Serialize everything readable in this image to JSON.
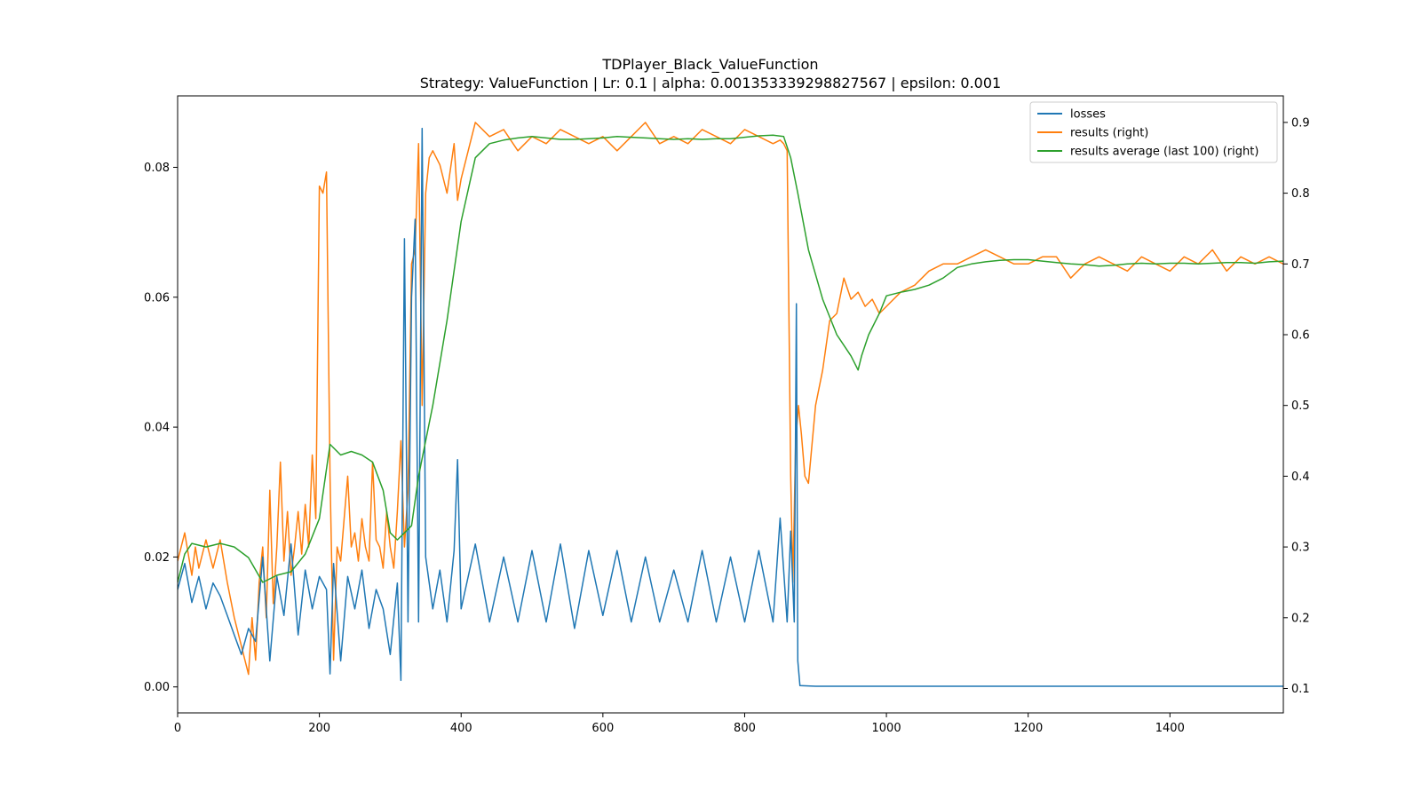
{
  "chart_data": {
    "type": "line",
    "title": "TDPlayer_Black_ValueFunction",
    "subtitle": "Strategy: ValueFunction | Lr: 0.1 | alpha: 0.001353339298827567 | epsilon: 0.001",
    "xlim": [
      0,
      1560
    ],
    "ylim_left": [
      -0.004,
      0.091
    ],
    "ylim_right": [
      0.0655,
      0.9375
    ],
    "xticks": [
      0,
      200,
      400,
      600,
      800,
      1000,
      1200,
      1400
    ],
    "yticks_left": [
      0.0,
      0.02,
      0.04,
      0.06,
      0.08
    ],
    "yticks_left_labels": [
      "0.00",
      "0.02",
      "0.04",
      "0.06",
      "0.08"
    ],
    "yticks_right": [
      0.1,
      0.2,
      0.3,
      0.4,
      0.5,
      0.6,
      0.7,
      0.8,
      0.9
    ],
    "yticks_right_labels": [
      "0.1",
      "0.2",
      "0.3",
      "0.4",
      "0.5",
      "0.6",
      "0.7",
      "0.8",
      "0.9"
    ],
    "legend_position": "top-right",
    "colors": {
      "losses": "#1f77b4",
      "results": "#ff7f0e",
      "average": "#2ca02c"
    },
    "series": [
      {
        "name": "losses",
        "axis": "left",
        "x": [
          0,
          10,
          20,
          30,
          40,
          50,
          60,
          70,
          80,
          90,
          100,
          110,
          120,
          130,
          140,
          150,
          160,
          170,
          180,
          190,
          200,
          210,
          215,
          220,
          230,
          240,
          250,
          260,
          270,
          280,
          290,
          300,
          310,
          315,
          320,
          325,
          330,
          335,
          340,
          345,
          350,
          360,
          370,
          380,
          390,
          395,
          400,
          420,
          440,
          460,
          480,
          500,
          520,
          540,
          560,
          580,
          600,
          620,
          640,
          660,
          680,
          700,
          720,
          740,
          760,
          780,
          800,
          820,
          840,
          850,
          860,
          865,
          870,
          873,
          875,
          878,
          900,
          1000,
          1200,
          1400,
          1560
        ],
        "values": [
          0.015,
          0.019,
          0.013,
          0.017,
          0.012,
          0.016,
          0.014,
          0.011,
          0.008,
          0.005,
          0.009,
          0.007,
          0.02,
          0.004,
          0.017,
          0.011,
          0.022,
          0.008,
          0.018,
          0.012,
          0.017,
          0.015,
          0.002,
          0.019,
          0.004,
          0.017,
          0.012,
          0.018,
          0.009,
          0.015,
          0.012,
          0.005,
          0.016,
          0.001,
          0.069,
          0.01,
          0.06,
          0.072,
          0.01,
          0.086,
          0.02,
          0.012,
          0.018,
          0.01,
          0.021,
          0.035,
          0.012,
          0.022,
          0.01,
          0.02,
          0.01,
          0.021,
          0.01,
          0.022,
          0.009,
          0.021,
          0.011,
          0.021,
          0.01,
          0.02,
          0.01,
          0.018,
          0.01,
          0.021,
          0.01,
          0.02,
          0.01,
          0.021,
          0.01,
          0.026,
          0.01,
          0.024,
          0.01,
          0.059,
          0.004,
          0.0002,
          0.0001,
          0.0001,
          0.0001,
          0.0001,
          0.0001
        ]
      },
      {
        "name": "results (right)",
        "axis": "right",
        "x": [
          0,
          10,
          20,
          25,
          30,
          40,
          50,
          60,
          70,
          80,
          90,
          100,
          105,
          110,
          115,
          120,
          125,
          130,
          135,
          140,
          145,
          150,
          155,
          160,
          165,
          170,
          175,
          180,
          185,
          190,
          195,
          200,
          205,
          210,
          215,
          220,
          225,
          230,
          235,
          240,
          245,
          250,
          255,
          260,
          265,
          270,
          275,
          280,
          285,
          290,
          295,
          300,
          305,
          310,
          315,
          320,
          325,
          330,
          335,
          340,
          345,
          350,
          355,
          360,
          370,
          380,
          390,
          395,
          400,
          420,
          440,
          460,
          480,
          500,
          520,
          540,
          560,
          580,
          600,
          620,
          640,
          660,
          680,
          700,
          720,
          740,
          760,
          780,
          800,
          820,
          840,
          850,
          855,
          860,
          865,
          868,
          872,
          876,
          880,
          885,
          890,
          900,
          910,
          920,
          930,
          940,
          950,
          960,
          970,
          980,
          990,
          1000,
          1020,
          1040,
          1060,
          1080,
          1100,
          1120,
          1140,
          1160,
          1180,
          1200,
          1220,
          1240,
          1260,
          1280,
          1300,
          1320,
          1340,
          1360,
          1380,
          1400,
          1420,
          1440,
          1460,
          1480,
          1500,
          1520,
          1540,
          1560
        ],
        "values": [
          0.28,
          0.32,
          0.26,
          0.3,
          0.27,
          0.31,
          0.27,
          0.31,
          0.25,
          0.2,
          0.16,
          0.12,
          0.2,
          0.14,
          0.25,
          0.3,
          0.2,
          0.38,
          0.22,
          0.3,
          0.42,
          0.28,
          0.35,
          0.26,
          0.3,
          0.35,
          0.29,
          0.36,
          0.3,
          0.43,
          0.34,
          0.81,
          0.8,
          0.83,
          0.4,
          0.14,
          0.3,
          0.28,
          0.34,
          0.4,
          0.3,
          0.32,
          0.28,
          0.34,
          0.3,
          0.28,
          0.42,
          0.31,
          0.3,
          0.27,
          0.35,
          0.3,
          0.27,
          0.35,
          0.45,
          0.3,
          0.38,
          0.7,
          0.72,
          0.87,
          0.5,
          0.8,
          0.85,
          0.86,
          0.84,
          0.8,
          0.87,
          0.79,
          0.82,
          0.9,
          0.88,
          0.89,
          0.86,
          0.88,
          0.87,
          0.89,
          0.88,
          0.87,
          0.88,
          0.86,
          0.88,
          0.9,
          0.87,
          0.88,
          0.87,
          0.89,
          0.88,
          0.87,
          0.89,
          0.88,
          0.87,
          0.875,
          0.87,
          0.86,
          0.4,
          0.25,
          0.45,
          0.5,
          0.46,
          0.4,
          0.39,
          0.5,
          0.55,
          0.62,
          0.63,
          0.68,
          0.65,
          0.66,
          0.64,
          0.65,
          0.63,
          0.64,
          0.66,
          0.67,
          0.69,
          0.7,
          0.7,
          0.71,
          0.72,
          0.71,
          0.7,
          0.7,
          0.71,
          0.71,
          0.68,
          0.7,
          0.71,
          0.7,
          0.69,
          0.71,
          0.7,
          0.69,
          0.71,
          0.7,
          0.72,
          0.69,
          0.71,
          0.7,
          0.71,
          0.7
        ]
      },
      {
        "name": "results average (last 100) (right)",
        "axis": "right",
        "x": [
          0,
          10,
          20,
          40,
          60,
          80,
          100,
          120,
          140,
          160,
          180,
          200,
          215,
          230,
          245,
          260,
          275,
          290,
          300,
          310,
          320,
          330,
          340,
          360,
          380,
          400,
          420,
          440,
          460,
          480,
          500,
          520,
          540,
          560,
          580,
          600,
          620,
          640,
          660,
          680,
          700,
          720,
          740,
          760,
          780,
          800,
          820,
          840,
          855,
          865,
          875,
          890,
          910,
          930,
          950,
          960,
          965,
          975,
          990,
          1000,
          1020,
          1040,
          1060,
          1080,
          1100,
          1120,
          1140,
          1160,
          1180,
          1200,
          1220,
          1240,
          1260,
          1280,
          1300,
          1320,
          1340,
          1360,
          1380,
          1400,
          1420,
          1440,
          1460,
          1480,
          1500,
          1520,
          1540,
          1560
        ],
        "values": [
          0.25,
          0.29,
          0.305,
          0.3,
          0.305,
          0.3,
          0.285,
          0.25,
          0.26,
          0.265,
          0.29,
          0.34,
          0.445,
          0.43,
          0.435,
          0.43,
          0.42,
          0.38,
          0.32,
          0.31,
          0.32,
          0.33,
          0.4,
          0.5,
          0.62,
          0.76,
          0.85,
          0.87,
          0.875,
          0.878,
          0.88,
          0.878,
          0.876,
          0.876,
          0.877,
          0.878,
          0.88,
          0.879,
          0.878,
          0.877,
          0.876,
          0.877,
          0.876,
          0.877,
          0.877,
          0.879,
          0.881,
          0.882,
          0.88,
          0.85,
          0.8,
          0.72,
          0.65,
          0.6,
          0.57,
          0.55,
          0.57,
          0.6,
          0.63,
          0.655,
          0.66,
          0.664,
          0.67,
          0.68,
          0.695,
          0.7,
          0.703,
          0.705,
          0.706,
          0.706,
          0.704,
          0.702,
          0.7,
          0.699,
          0.697,
          0.698,
          0.7,
          0.701,
          0.7,
          0.701,
          0.701,
          0.7,
          0.701,
          0.702,
          0.702,
          0.701,
          0.703,
          0.704
        ]
      }
    ]
  }
}
